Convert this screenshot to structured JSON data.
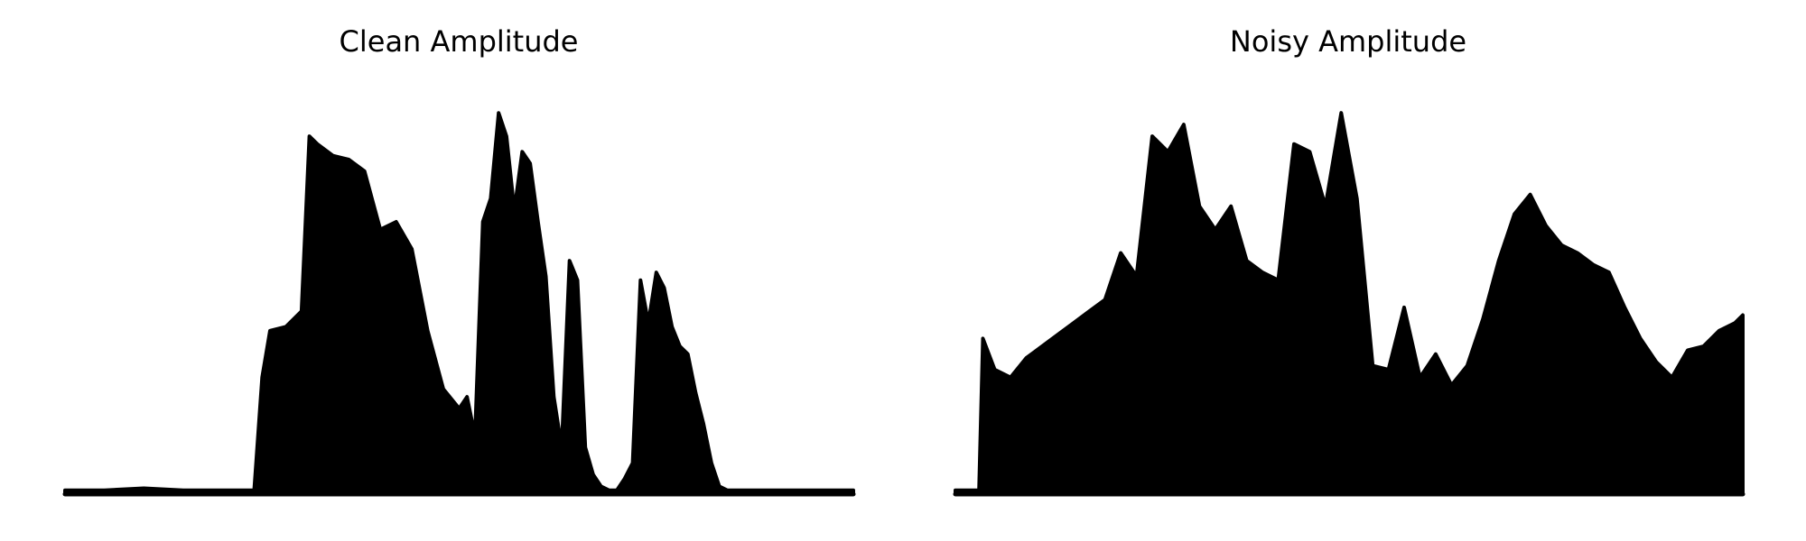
{
  "figure": {
    "background": "#ffffff",
    "line_color": "#000000"
  },
  "chart_data": [
    {
      "type": "area",
      "title": "Clean Amplitude",
      "xlabel": "",
      "ylabel": "",
      "axes_visible": false,
      "grid": false,
      "x": [
        0.0,
        0.05,
        0.1,
        0.15,
        0.2,
        0.24,
        0.25,
        0.26,
        0.28,
        0.3,
        0.31,
        0.32,
        0.34,
        0.36,
        0.38,
        0.4,
        0.42,
        0.44,
        0.46,
        0.48,
        0.5,
        0.51,
        0.52,
        0.53,
        0.54,
        0.55,
        0.56,
        0.57,
        0.58,
        0.59,
        0.6,
        0.61,
        0.62,
        0.63,
        0.64,
        0.65,
        0.66,
        0.67,
        0.68,
        0.69,
        0.7,
        0.71,
        0.72,
        0.73,
        0.74,
        0.75,
        0.76,
        0.77,
        0.78,
        0.79,
        0.8,
        0.81,
        0.82,
        0.83,
        0.84,
        0.85,
        0.86,
        0.87,
        0.88,
        0.89,
        0.9,
        0.92,
        0.95,
        1.0
      ],
      "y": [
        0.01,
        0.01,
        0.015,
        0.01,
        0.01,
        0.01,
        0.3,
        0.42,
        0.43,
        0.47,
        0.92,
        0.9,
        0.87,
        0.86,
        0.83,
        0.68,
        0.7,
        0.63,
        0.42,
        0.27,
        0.22,
        0.25,
        0.15,
        0.7,
        0.76,
        0.98,
        0.92,
        0.73,
        0.88,
        0.85,
        0.7,
        0.56,
        0.25,
        0.12,
        0.6,
        0.55,
        0.12,
        0.05,
        0.02,
        0.01,
        0.01,
        0.04,
        0.08,
        0.55,
        0.44,
        0.57,
        0.53,
        0.43,
        0.38,
        0.36,
        0.26,
        0.18,
        0.08,
        0.02,
        0.01,
        0.01,
        0.01,
        0.01,
        0.01,
        0.01,
        0.01,
        0.01,
        0.01,
        0.01
      ],
      "ylim": [
        0,
        1.05
      ]
    },
    {
      "type": "area",
      "title": "Noisy Amplitude",
      "xlabel": "",
      "ylabel": "",
      "axes_visible": false,
      "grid": false,
      "x": [
        0.0,
        0.03,
        0.035,
        0.05,
        0.07,
        0.09,
        0.11,
        0.13,
        0.15,
        0.17,
        0.19,
        0.21,
        0.23,
        0.25,
        0.27,
        0.29,
        0.31,
        0.33,
        0.35,
        0.37,
        0.39,
        0.41,
        0.43,
        0.45,
        0.47,
        0.49,
        0.51,
        0.53,
        0.55,
        0.57,
        0.59,
        0.61,
        0.63,
        0.65,
        0.67,
        0.69,
        0.71,
        0.73,
        0.75,
        0.77,
        0.79,
        0.81,
        0.83,
        0.85,
        0.87,
        0.89,
        0.91,
        0.93,
        0.95,
        0.97,
        0.99,
        1.0
      ],
      "y": [
        0.01,
        0.01,
        0.4,
        0.32,
        0.3,
        0.35,
        0.38,
        0.41,
        0.44,
        0.47,
        0.5,
        0.62,
        0.56,
        0.92,
        0.88,
        0.95,
        0.74,
        0.68,
        0.74,
        0.6,
        0.57,
        0.55,
        0.9,
        0.88,
        0.74,
        0.98,
        0.76,
        0.33,
        0.32,
        0.48,
        0.3,
        0.36,
        0.28,
        0.33,
        0.45,
        0.6,
        0.72,
        0.77,
        0.69,
        0.64,
        0.62,
        0.59,
        0.57,
        0.48,
        0.4,
        0.34,
        0.3,
        0.37,
        0.38,
        0.42,
        0.44,
        0.46
      ],
      "ylim": [
        0,
        1.05
      ]
    }
  ]
}
